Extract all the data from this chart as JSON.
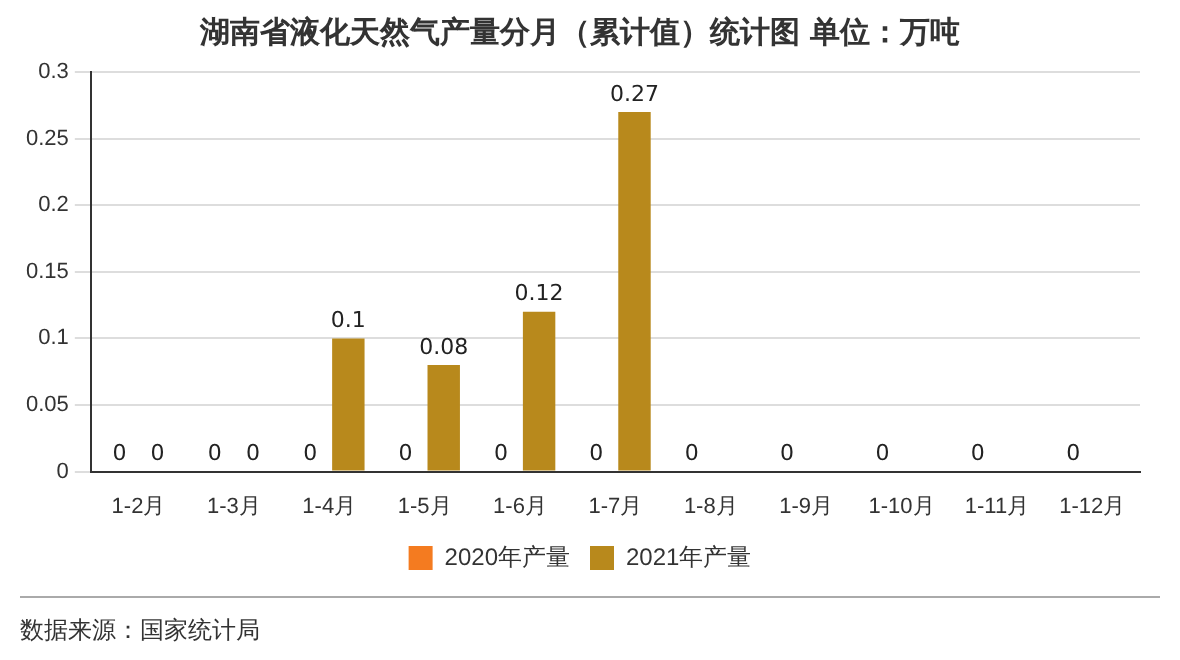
{
  "chart_data": {
    "type": "bar",
    "title": "湖南省液化天然气产量分月（累计值）统计图 单位：万吨",
    "categories": [
      "1-2月",
      "1-3月",
      "1-4月",
      "1-5月",
      "1-6月",
      "1-7月",
      "1-8月",
      "1-9月",
      "1-10月",
      "1-11月",
      "1-12月"
    ],
    "series": [
      {
        "name": "2020年产量",
        "color": "#f47b20",
        "values": [
          0,
          0,
          0,
          0,
          0,
          0,
          0,
          0,
          0,
          0,
          0
        ]
      },
      {
        "name": "2021年产量",
        "color": "#b8891c",
        "values": [
          0,
          0,
          0.1,
          0.08,
          0.12,
          0.27,
          null,
          null,
          null,
          null,
          null
        ]
      }
    ],
    "ylim": [
      0,
      0.3
    ],
    "yticks": [
      0,
      0.05,
      0.1,
      0.15,
      0.2,
      0.25,
      0.3
    ],
    "grid": "y",
    "legend": "bottom",
    "data_labels": true,
    "annotations": [
      "数据来源：国家统计局"
    ]
  }
}
